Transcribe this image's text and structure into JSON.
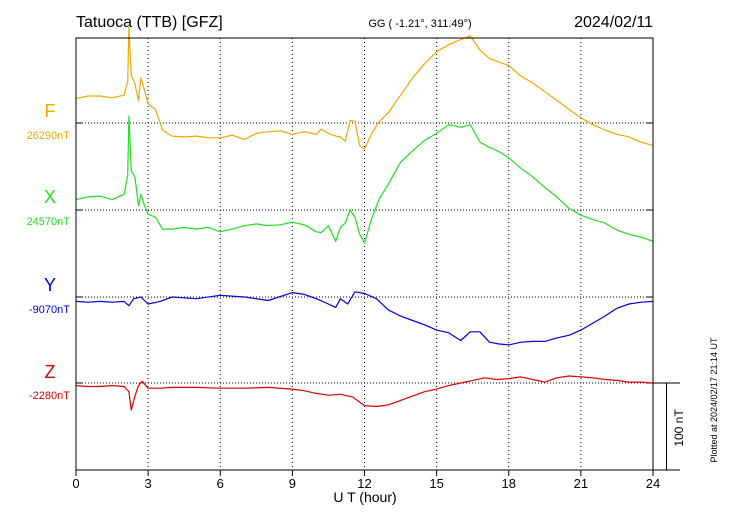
{
  "header": {
    "station": "Tatuoca (TTB)  [GFZ]",
    "coords": "GG ( -1.21°, 311.49°)",
    "date": "2024/02/11"
  },
  "footer_note": "Plotted at 2024/02/17 21:14 UT",
  "scale_bar_label": "100 nT",
  "chart_data": {
    "type": "line",
    "xlabel": "U T (hour)",
    "xlim": [
      0,
      24
    ],
    "xticks": [
      0,
      3,
      6,
      9,
      12,
      15,
      18,
      21,
      24
    ],
    "scale_bar_nT": 100,
    "grid": true,
    "series": [
      {
        "name": "F",
        "baseline_label": "26290nT",
        "baseline_nT": 26290,
        "color": "#f0a800",
        "x": [
          0,
          0.5,
          1,
          1.5,
          2,
          2.15,
          2.2,
          2.3,
          2.45,
          2.6,
          2.7,
          2.85,
          3,
          3.3,
          3.6,
          4,
          4.5,
          5,
          5.5,
          6,
          6.5,
          7,
          7.5,
          8,
          8.5,
          9,
          9.5,
          10,
          10.2,
          10.5,
          10.8,
          11,
          11.2,
          11.4,
          11.6,
          11.8,
          12,
          12.3,
          12.6,
          13,
          13.5,
          14,
          14.5,
          15,
          15.5,
          16,
          16.4,
          16.8,
          17.2,
          17.6,
          18,
          18.5,
          19,
          19.5,
          20,
          20.5,
          21,
          21.5,
          22,
          22.5,
          23,
          23.5,
          24
        ],
        "values": [
          28,
          31,
          31,
          29,
          32,
          48,
          110,
          55,
          45,
          26,
          52,
          38,
          22,
          16,
          -8,
          -15,
          -16,
          -15,
          -17,
          -17,
          -14,
          -19,
          -12,
          -10,
          -9,
          -13,
          -10,
          -13,
          -7,
          -12,
          -15,
          -16,
          -21,
          3,
          2,
          -26,
          -30,
          -12,
          1,
          12,
          32,
          52,
          68,
          82,
          90,
          96,
          100,
          84,
          74,
          70,
          66,
          54,
          46,
          36,
          26,
          16,
          6,
          -2,
          -8,
          -13,
          -16,
          -22,
          -26
        ]
      },
      {
        "name": "X",
        "baseline_label": "24570nT",
        "baseline_nT": 24570,
        "color": "#22dd22",
        "x": [
          0,
          0.5,
          1,
          1.5,
          2,
          2.15,
          2.2,
          2.3,
          2.45,
          2.6,
          2.7,
          2.85,
          3,
          3.3,
          3.6,
          4,
          4.5,
          5,
          5.5,
          6,
          6.5,
          7,
          7.5,
          8,
          8.5,
          9,
          9.5,
          10,
          10.2,
          10.5,
          10.8,
          11,
          11.2,
          11.4,
          11.6,
          11.8,
          12,
          12.3,
          12.6,
          13,
          13.5,
          14,
          14.5,
          15,
          15.5,
          16,
          16.4,
          16.8,
          17.2,
          17.6,
          18,
          18.5,
          19,
          19.5,
          20,
          20.5,
          21,
          21.5,
          22,
          22.5,
          23,
          23.5,
          24
        ],
        "values": [
          12,
          15,
          16,
          12,
          18,
          40,
          108,
          45,
          38,
          5,
          18,
          5,
          -5,
          -8,
          -22,
          -22,
          -20,
          -22,
          -20,
          -25,
          -22,
          -18,
          -16,
          -18,
          -17,
          -14,
          -17,
          -25,
          -26,
          -18,
          -36,
          -20,
          -15,
          0,
          -8,
          -28,
          -38,
          -10,
          12,
          30,
          55,
          68,
          80,
          88,
          98,
          95,
          98,
          78,
          72,
          67,
          60,
          48,
          38,
          26,
          15,
          2,
          -6,
          -11,
          -15,
          -23,
          -28,
          -31,
          -36
        ]
      },
      {
        "name": "Y",
        "baseline_label": "-9070nT",
        "baseline_nT": -9070,
        "color": "#0000dd",
        "x": [
          0,
          0.5,
          1,
          1.5,
          2,
          2.2,
          2.4,
          2.7,
          3,
          3.5,
          4,
          5,
          6,
          7,
          8,
          9,
          9.5,
          10,
          10.5,
          10.8,
          11,
          11.3,
          11.6,
          12,
          12.5,
          13,
          13.5,
          14,
          14.5,
          15,
          15.5,
          16,
          16.4,
          16.8,
          17.2,
          17.6,
          18,
          18.5,
          19,
          19.5,
          20,
          20.5,
          21,
          21.5,
          22,
          22.5,
          23,
          23.5,
          24
        ],
        "values": [
          -5,
          -6,
          -5,
          -6,
          -5,
          -10,
          -2,
          0,
          -8,
          -5,
          0,
          -2,
          2,
          0,
          -4,
          5,
          3,
          -2,
          -8,
          -12,
          -2,
          -8,
          6,
          4,
          -2,
          -15,
          -22,
          -27,
          -32,
          -38,
          -41,
          -50,
          -40,
          -40,
          -52,
          -54,
          -55,
          -52,
          -51,
          -51,
          -47,
          -44,
          -38,
          -30,
          -22,
          -13,
          -8,
          -6,
          -5
        ]
      },
      {
        "name": "Z",
        "baseline_label": "-2280nT",
        "baseline_nT": -2280,
        "color": "#dd0000",
        "x": [
          0,
          0.5,
          1,
          1.5,
          2,
          2.2,
          2.3,
          2.45,
          2.6,
          2.75,
          3,
          3.5,
          4,
          5,
          6,
          7,
          8,
          9,
          9.5,
          10,
          10.5,
          11,
          11.5,
          12,
          12.5,
          13,
          13.5,
          14,
          14.5,
          15,
          15.5,
          16,
          16.5,
          17,
          17.5,
          18,
          18.5,
          19,
          19.5,
          20,
          20.5,
          21,
          21.5,
          22,
          22.5,
          23,
          23.5,
          24
        ],
        "values": [
          -3,
          -4,
          -4,
          -3,
          -4,
          -10,
          -31,
          -15,
          -3,
          2,
          -6,
          -6,
          -5,
          -5,
          -6,
          -6,
          -5,
          -7,
          -9,
          -12,
          -14,
          -13,
          -16,
          -26,
          -27,
          -25,
          -20,
          -15,
          -10,
          -7,
          -3,
          0,
          3,
          6,
          4,
          5,
          7,
          4,
          1,
          6,
          8,
          7,
          6,
          4,
          3,
          1,
          1,
          0
        ]
      }
    ]
  }
}
